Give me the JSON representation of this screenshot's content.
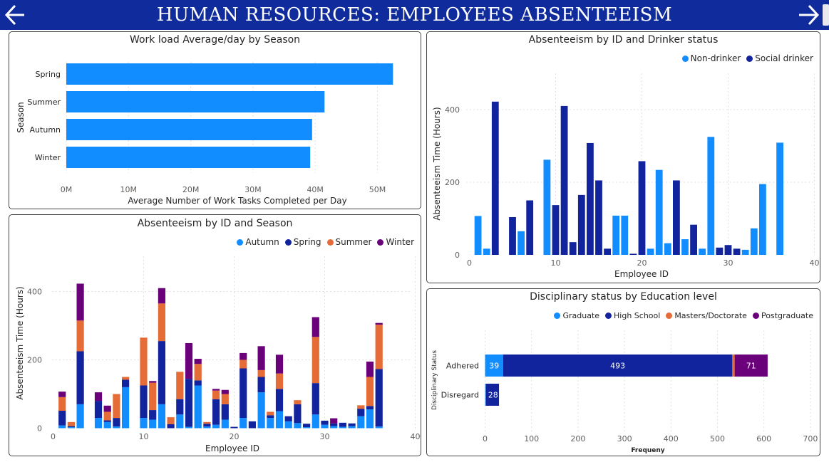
{
  "header": {
    "title": "HUMAN RESOURCES: EMPLOYEES ABSENTEEISM"
  },
  "nav": {
    "back_icon": "arrow-left-icon",
    "forward_icon": "arrow-right-icon"
  },
  "panels": {
    "workload": {
      "title": "Work load Average/day by Season"
    },
    "season": {
      "title": "Absenteeism by ID and Season"
    },
    "drinker": {
      "title": "Absenteeism by ID and Drinker status"
    },
    "discipline": {
      "title": "Disciplinary status by Education level"
    }
  },
  "chart_data": [
    {
      "type": "bar",
      "orientation": "horizontal",
      "title": "Work load Average/day by Season",
      "xlabel": "Average Number of Work Tasks Completed per Day",
      "ylabel": "Season",
      "categories": [
        "Spring",
        "Summer",
        "Autumn",
        "Winter"
      ],
      "values": [
        52.5,
        41.5,
        39.5,
        39.2
      ],
      "value_unit": "M",
      "xticks": [
        "0M",
        "10M",
        "20M",
        "30M",
        "40M",
        "50M"
      ],
      "xlim": [
        0,
        55
      ],
      "color": "#118dff"
    },
    {
      "type": "bar",
      "stacked": true,
      "title": "Absenteeism by ID and Season",
      "xlabel": "Employee ID",
      "ylabel": "Absenteeism Time (Hours)",
      "xticks": [
        "0",
        "10",
        "20",
        "30",
        "40"
      ],
      "yticks": [
        "0",
        "200",
        "400"
      ],
      "xlim": [
        0,
        40
      ],
      "ylim": [
        0,
        440
      ],
      "legend": "top-right",
      "x": [
        1,
        2,
        3,
        5,
        6,
        7,
        8,
        9,
        10,
        11,
        12,
        13,
        14,
        15,
        16,
        17,
        18,
        19,
        20,
        21,
        22,
        23,
        24,
        25,
        26,
        27,
        28,
        29,
        30,
        31,
        32,
        33,
        34,
        35,
        36
      ],
      "series": [
        {
          "name": "Autumn",
          "color": "#118dff",
          "values": [
            8,
            3,
            70,
            30,
            18,
            5,
            120,
            0,
            30,
            25,
            70,
            0,
            40,
            4,
            125,
            5,
            10,
            25,
            0,
            30,
            0,
            105,
            30,
            50,
            20,
            15,
            3,
            40,
            10,
            6,
            4,
            6,
            35,
            55,
            5
          ]
        },
        {
          "name": "Spring",
          "color": "#12239e",
          "values": [
            43,
            3,
            155,
            50,
            5,
            25,
            22,
            0,
            95,
            28,
            185,
            12,
            45,
            140,
            15,
            8,
            75,
            45,
            4,
            145,
            20,
            45,
            8,
            65,
            15,
            55,
            10,
            92,
            12,
            8,
            12,
            8,
            22,
            10,
            168
          ]
        },
        {
          "name": "Summer",
          "color": "#e66c37",
          "values": [
            40,
            12,
            90,
            0,
            25,
            70,
            8,
            0,
            140,
            80,
            110,
            20,
            80,
            0,
            48,
            5,
            25,
            30,
            0,
            25,
            0,
            20,
            10,
            45,
            0,
            12,
            0,
            135,
            0,
            0,
            0,
            0,
            10,
            85,
            130
          ]
        },
        {
          "name": "Winter",
          "color": "#6b007b",
          "values": [
            16,
            0,
            108,
            25,
            18,
            0,
            0,
            0,
            0,
            5,
            45,
            0,
            0,
            105,
            15,
            0,
            5,
            12,
            0,
            20,
            0,
            70,
            0,
            55,
            0,
            0,
            0,
            58,
            0,
            15,
            0,
            0,
            0,
            45,
            5
          ]
        }
      ]
    },
    {
      "type": "bar",
      "title": "Absenteeism by ID and Drinker status",
      "xlabel": "Employee ID",
      "ylabel": "Absenteeism Time (Hours)",
      "xticks": [
        "0",
        "10",
        "20",
        "30",
        "40"
      ],
      "yticks": [
        "0",
        "200",
        "400"
      ],
      "xlim": [
        0,
        40
      ],
      "ylim": [
        0,
        460
      ],
      "legend": "top-right",
      "series": [
        {
          "name": "Non-drinker",
          "color": "#118dff",
          "points": [
            [
              1,
              107
            ],
            [
              2,
              17
            ],
            [
              6,
              65
            ],
            [
              9,
              262
            ],
            [
              17,
              108
            ],
            [
              18,
              108
            ],
            [
              21,
              17
            ],
            [
              22,
              234
            ],
            [
              23,
              32
            ],
            [
              25,
              43
            ],
            [
              27,
              17
            ],
            [
              28,
              325
            ],
            [
              32,
              14
            ],
            [
              33,
              73
            ],
            [
              34,
              195
            ],
            [
              36,
              309
            ]
          ]
        },
        {
          "name": "Social drinker",
          "color": "#12239e",
          "points": [
            [
              3,
              422
            ],
            [
              5,
              104
            ],
            [
              7,
              150
            ],
            [
              10,
              137
            ],
            [
              11,
              410
            ],
            [
              12,
              35
            ],
            [
              13,
              165
            ],
            [
              14,
              308
            ],
            [
              15,
              205
            ],
            [
              16,
              17
            ],
            [
              19,
              3
            ],
            [
              20,
              258
            ],
            [
              24,
              205
            ],
            [
              26,
              83
            ],
            [
              29,
              20
            ],
            [
              30,
              27
            ],
            [
              31,
              17
            ]
          ]
        }
      ]
    },
    {
      "type": "bar",
      "orientation": "horizontal",
      "stacked": true,
      "title": "Disciplinary status by Education level",
      "xlabel": "Frequeny",
      "ylabel": "Disciplinary Status",
      "categories": [
        "Adhered",
        "Disregard"
      ],
      "xticks": [
        "0",
        "100",
        "200",
        "300",
        "400",
        "500",
        "600",
        "700"
      ],
      "xlim": [
        0,
        700
      ],
      "legend": "top-right",
      "series": [
        {
          "name": "Graduate",
          "color": "#118dff",
          "values": [
            39,
            2
          ]
        },
        {
          "name": "High School",
          "color": "#12239e",
          "values": [
            493,
            28
          ]
        },
        {
          "name": "Masters/Doctorate",
          "color": "#e66c37",
          "values": [
            5,
            0
          ]
        },
        {
          "name": "Postgraduate",
          "color": "#6b007b",
          "values": [
            71,
            0
          ]
        }
      ],
      "data_labels": [
        [
          "39",
          "493",
          "",
          "71"
        ],
        [
          "",
          "28",
          "",
          ""
        ]
      ]
    }
  ]
}
